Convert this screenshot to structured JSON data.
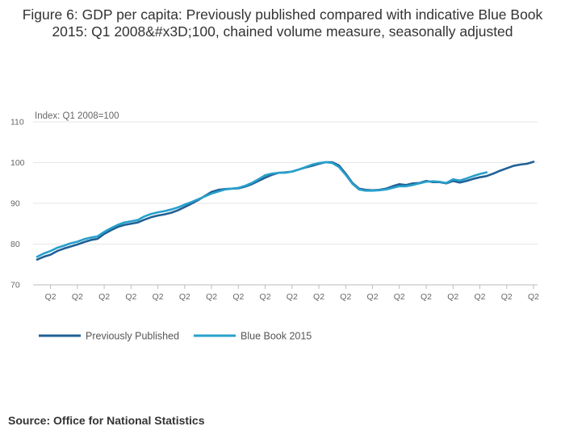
{
  "chart_data": {
    "type": "line",
    "title": "Figure 6: GDP per capita: Previously published compared with indicative Blue Book 2015: Q1 2008&#x3D;100, chained volume measure, seasonally adjusted",
    "ylabel": "Index: Q1 2008=100",
    "xlabel": "",
    "ylim": [
      70,
      110
    ],
    "yticks": [
      70,
      80,
      90,
      100,
      110
    ],
    "grid": true,
    "legend_position": "bottom-left",
    "x_tick_labels": [
      "Q2",
      "Q2",
      "Q2",
      "Q2",
      "Q2",
      "Q2",
      "Q2",
      "Q2",
      "Q2",
      "Q2",
      "Q2",
      "Q2",
      "Q2",
      "Q2",
      "Q2",
      "Q2",
      "Q2",
      "Q2",
      "Q2"
    ],
    "x_tick_indices": [
      2,
      6,
      10,
      14,
      18,
      22,
      26,
      30,
      34,
      38,
      42,
      46,
      50,
      54,
      58,
      62,
      66,
      70,
      74
    ],
    "x_count": 75,
    "series": [
      {
        "name": "Previously Published",
        "color": "#206095",
        "values": [
          76.2,
          76.9,
          77.4,
          78.3,
          78.9,
          79.4,
          79.9,
          80.5,
          81.0,
          81.3,
          82.5,
          83.4,
          84.2,
          84.7,
          85.0,
          85.3,
          86.0,
          86.6,
          87.0,
          87.3,
          87.7,
          88.3,
          89.1,
          89.9,
          90.8,
          91.8,
          92.8,
          93.3,
          93.5,
          93.6,
          93.7,
          94.1,
          94.7,
          95.5,
          96.3,
          97.0,
          97.5,
          97.6,
          97.8,
          98.3,
          98.8,
          99.2,
          99.7,
          100.1,
          100.1,
          99.3,
          97.3,
          95.0,
          93.6,
          93.3,
          93.2,
          93.3,
          93.6,
          94.2,
          94.7,
          94.5,
          94.9,
          95.0,
          95.5,
          95.2,
          95.2,
          94.9,
          95.5,
          95.1,
          95.5,
          96.0,
          96.4,
          96.7,
          97.3,
          98.0,
          98.6,
          99.2,
          99.5,
          99.7,
          100.2
        ]
      },
      {
        "name": "Blue Book 2015",
        "color": "#27a0cc",
        "values": [
          76.9,
          77.7,
          78.3,
          79.1,
          79.6,
          80.2,
          80.6,
          81.2,
          81.6,
          81.9,
          83.0,
          83.9,
          84.7,
          85.3,
          85.6,
          85.9,
          86.8,
          87.4,
          87.8,
          88.1,
          88.5,
          89.0,
          89.7,
          90.3,
          91.0,
          91.7,
          92.4,
          92.9,
          93.4,
          93.6,
          93.8,
          94.3,
          95.0,
          95.9,
          96.9,
          97.3,
          97.5,
          97.5,
          97.8,
          98.3,
          98.9,
          99.5,
          99.9,
          100.1,
          99.9,
          98.9,
          97.0,
          94.8,
          93.4,
          93.1,
          93.1,
          93.2,
          93.4,
          93.8,
          94.2,
          94.2,
          94.5,
          94.9,
          95.3,
          95.4,
          95.3,
          95.0,
          95.9,
          95.6,
          96.1,
          96.7,
          97.2,
          97.6
        ]
      }
    ]
  },
  "source_text": "Source: Office for National Statistics"
}
